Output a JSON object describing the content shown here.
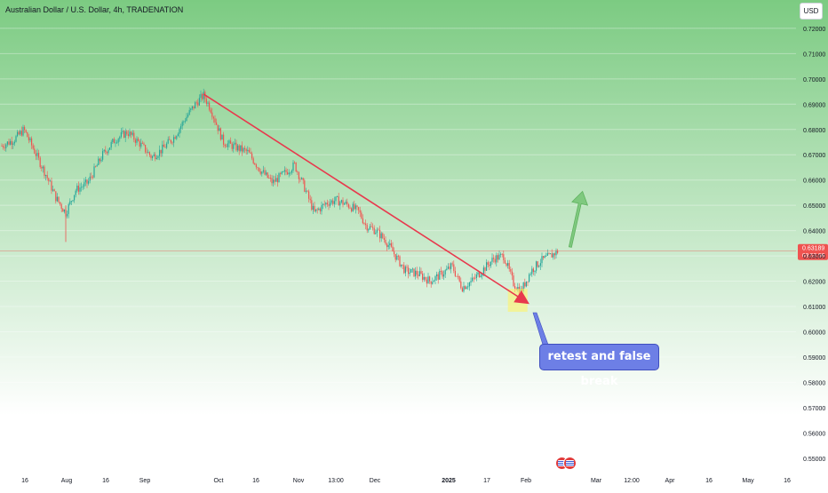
{
  "header": {
    "ticker": "Australian Dollar / U.S. Dollar, 4h, TRADENATION",
    "currency_button": "USD"
  },
  "colors": {
    "bg_top": "#7ccb82",
    "bg_bottom": "#ffffff",
    "candle_up": "#26a69a",
    "candle_down": "#ef5350",
    "trendline": "#e8394d",
    "arrow": "#7fc97f",
    "price_label": "#ef5350",
    "callout": "#6d7fe6"
  },
  "annotations": {
    "callout_text": "retest and false break"
  },
  "price_label": {
    "value": "0.63189",
    "countdown": "03:53:56"
  },
  "chart_data": {
    "type": "candlestick",
    "title": "Australian Dollar / U.S. Dollar, 4h, TRADENATION",
    "ylim": [
      0.545,
      0.727
    ],
    "y_ticks": [
      "0.72000",
      "0.71000",
      "0.70000",
      "0.69000",
      "0.68000",
      "0.67000",
      "0.66000",
      "0.65000",
      "0.64000",
      "0.63000",
      "0.62000",
      "0.61000",
      "0.60000",
      "0.59000",
      "0.58000",
      "0.57000",
      "0.56000",
      "0.55000"
    ],
    "x_ticks": [
      "16",
      "Aug",
      "16",
      "Sep",
      "Oct",
      "16",
      "Nov",
      "13:00",
      "Dec",
      "2025",
      "17",
      "Feb",
      "Mar",
      "12:00",
      "Apr",
      "16",
      "May",
      "16"
    ],
    "price_path": [
      [
        "2024-07-10",
        0.6735
      ],
      [
        "2024-07-15",
        0.676
      ],
      [
        "2024-07-19",
        0.68
      ],
      [
        "2024-07-24",
        0.67
      ],
      [
        "2024-07-28",
        0.662
      ],
      [
        "2024-08-01",
        0.653
      ],
      [
        "2024-08-05",
        0.647
      ],
      [
        "2024-08-09",
        0.656
      ],
      [
        "2024-08-14",
        0.659
      ],
      [
        "2024-08-20",
        0.67
      ],
      [
        "2024-08-25",
        0.676
      ],
      [
        "2024-08-30",
        0.679
      ],
      [
        "2024-09-04",
        0.6745
      ],
      [
        "2024-09-09",
        0.669
      ],
      [
        "2024-09-13",
        0.672
      ],
      [
        "2024-09-18",
        0.677
      ],
      [
        "2024-09-23",
        0.685
      ],
      [
        "2024-09-27",
        0.6905
      ],
      [
        "2024-09-30",
        0.6935
      ],
      [
        "2024-10-03",
        0.688
      ],
      [
        "2024-10-08",
        0.675
      ],
      [
        "2024-10-13",
        0.673
      ],
      [
        "2024-10-18",
        0.671
      ],
      [
        "2024-10-23",
        0.664
      ],
      [
        "2024-10-28",
        0.659
      ],
      [
        "2024-11-01",
        0.662
      ],
      [
        "2024-11-06",
        0.666
      ],
      [
        "2024-11-10",
        0.657
      ],
      [
        "2024-11-14",
        0.647
      ],
      [
        "2024-11-19",
        0.651
      ],
      [
        "2024-11-23",
        0.652
      ],
      [
        "2024-11-28",
        0.65
      ],
      [
        "2024-12-02",
        0.6475
      ],
      [
        "2024-12-05",
        0.642
      ],
      [
        "2024-12-09",
        0.64
      ],
      [
        "2024-12-13",
        0.636
      ],
      [
        "2024-12-17",
        0.63
      ],
      [
        "2024-12-21",
        0.624
      ],
      [
        "2024-12-26",
        0.623
      ],
      [
        "2024-12-31",
        0.62
      ],
      [
        "2025-01-05",
        0.623
      ],
      [
        "2025-01-09",
        0.626
      ],
      [
        "2025-01-13",
        0.6175
      ],
      [
        "2025-01-17",
        0.62
      ],
      [
        "2025-01-21",
        0.624
      ],
      [
        "2025-01-26",
        0.629
      ],
      [
        "2025-01-30",
        0.63
      ],
      [
        "2025-02-03",
        0.619
      ],
      [
        "2025-02-06",
        0.616
      ],
      [
        "2025-02-10",
        0.624
      ],
      [
        "2025-02-14",
        0.628
      ],
      [
        "2025-02-18",
        0.63
      ],
      [
        "2025-02-21",
        0.6319
      ]
    ],
    "current_price": 0.63189,
    "trendline": {
      "from": [
        "2024-09-30",
        0.694
      ],
      "to": [
        "2025-02-07",
        0.6125
      ]
    },
    "forecast_arrow": {
      "from": [
        "2025-02-26",
        0.6335
      ],
      "to": [
        "2025-03-03",
        0.6555
      ]
    },
    "grid": true
  }
}
